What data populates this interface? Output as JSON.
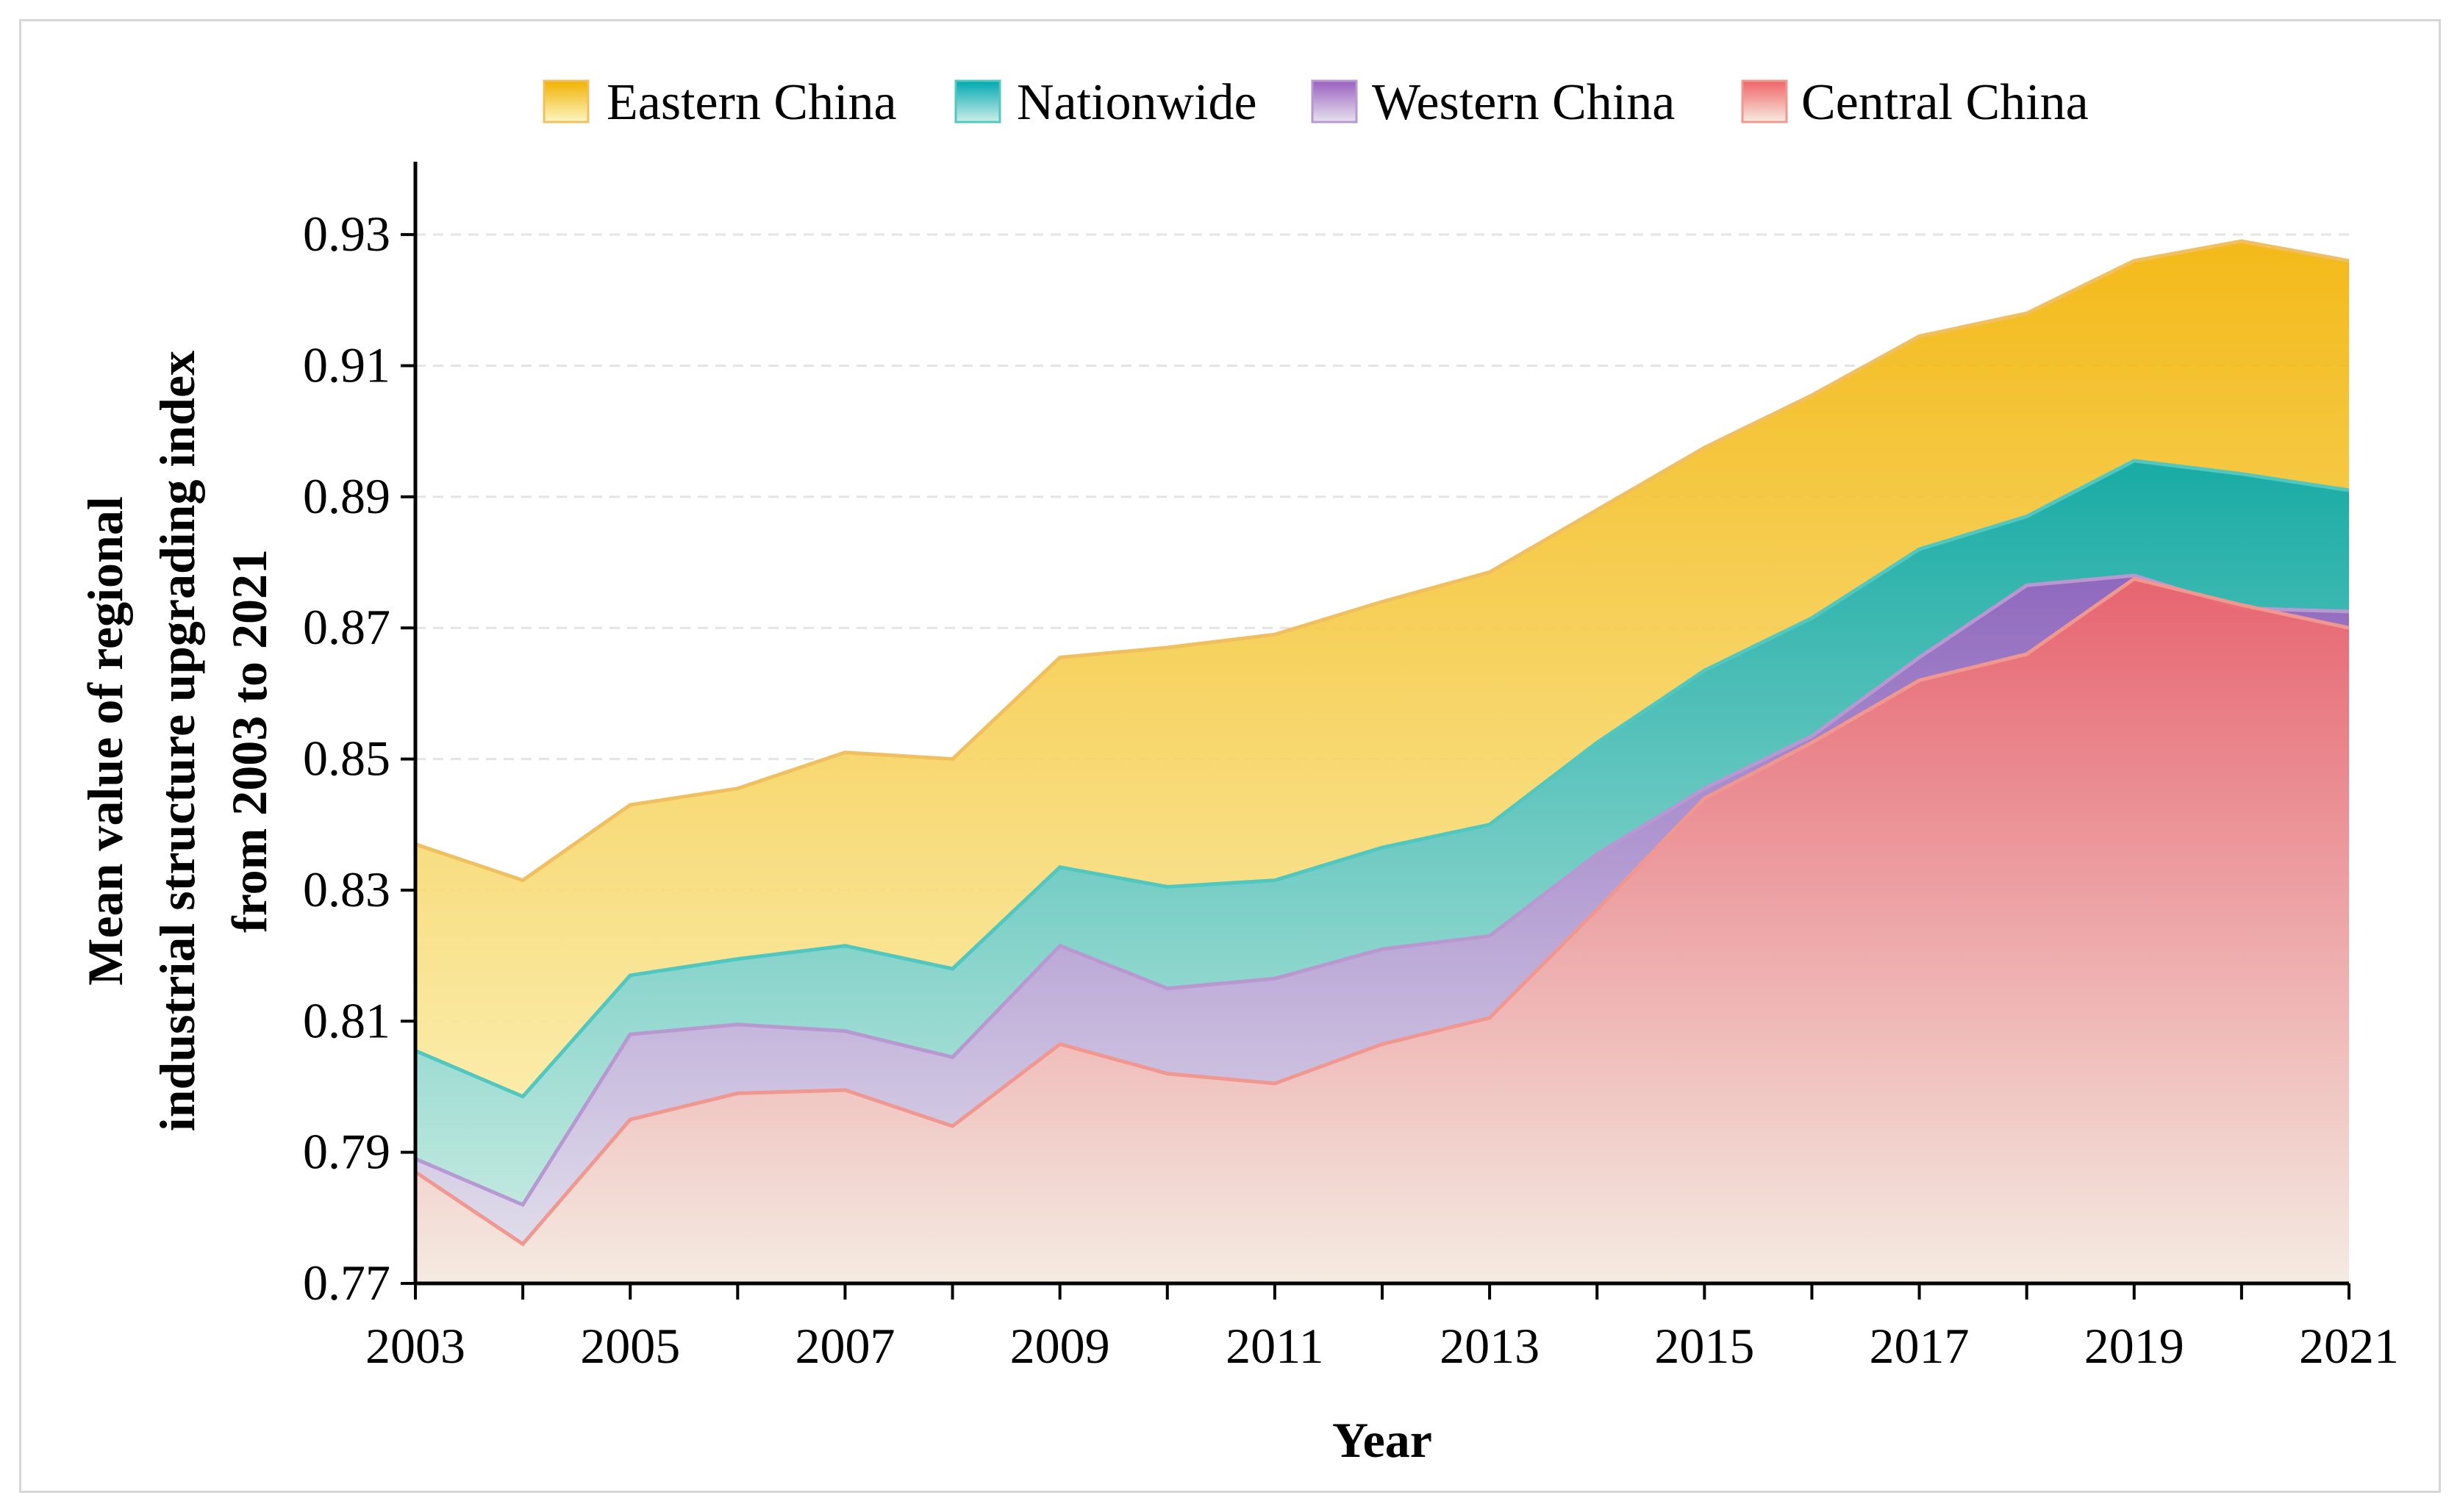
{
  "chart_data": {
    "type": "area",
    "x": [
      2003,
      2004,
      2005,
      2006,
      2007,
      2008,
      2009,
      2010,
      2011,
      2012,
      2013,
      2014,
      2015,
      2016,
      2017,
      2018,
      2019,
      2020,
      2021
    ],
    "x_tick_labels": [
      "2003",
      "2005",
      "2007",
      "2009",
      "2011",
      "2013",
      "2015",
      "2017",
      "2019",
      "2021"
    ],
    "y_tick_labels": [
      "0.77",
      "0.79",
      "0.81",
      "0.83",
      "0.85",
      "0.87",
      "0.89",
      "0.91",
      "0.93"
    ],
    "y_ticks": [
      0.77,
      0.79,
      0.81,
      0.83,
      0.85,
      0.87,
      0.89,
      0.91,
      0.93
    ],
    "xlim": [
      2003,
      2021
    ],
    "ylim": [
      0.77,
      0.94
    ],
    "xlabel": "Year",
    "ylabel_lines": [
      "Mean value of  regional",
      "industrial structure upgrading index",
      "from 2003 to 2021"
    ],
    "grid": "horizontal-dashed",
    "legend_position": "top-center",
    "series": [
      {
        "name": "Eastern China",
        "key": "eastern",
        "color_top": "#f2b200",
        "color_bottom": "#fbf6c4",
        "line": "#f0c060",
        "values": [
          0.837,
          0.8315,
          0.843,
          0.8455,
          0.851,
          0.85,
          0.8655,
          0.867,
          0.869,
          0.874,
          0.8785,
          0.888,
          0.8975,
          0.9055,
          0.9145,
          0.918,
          0.926,
          0.929,
          0.926
        ]
      },
      {
        "name": "Nationwide",
        "key": "nationwide",
        "color_top": "#00a8b0",
        "color_bottom": "#cdeee8",
        "line": "#50c8c0",
        "values": [
          0.8055,
          0.7985,
          0.817,
          0.8195,
          0.8215,
          0.818,
          0.8335,
          0.8305,
          0.8315,
          0.8365,
          0.84,
          0.8525,
          0.8635,
          0.8715,
          0.882,
          0.887,
          0.8955,
          0.8935,
          0.891
        ]
      },
      {
        "name": "Western China",
        "key": "western",
        "color_top": "#9a60c0",
        "color_bottom": "#e6e2ee",
        "line": "#b898d0",
        "values": [
          0.789,
          0.782,
          0.808,
          0.8095,
          0.8085,
          0.8045,
          0.8215,
          0.815,
          0.8165,
          0.821,
          0.823,
          0.8355,
          0.8455,
          0.8535,
          0.8655,
          0.8765,
          0.878,
          0.873,
          0.8725
        ]
      },
      {
        "name": "Central China",
        "key": "central",
        "color_top": "#f06468",
        "color_bottom": "#f6ece0",
        "line": "#f09890",
        "values": [
          0.787,
          0.776,
          0.795,
          0.799,
          0.7995,
          0.794,
          0.8065,
          0.802,
          0.8005,
          0.8065,
          0.8105,
          0.827,
          0.844,
          0.8525,
          0.862,
          0.866,
          0.8775,
          0.8735,
          0.87
        ]
      }
    ]
  }
}
